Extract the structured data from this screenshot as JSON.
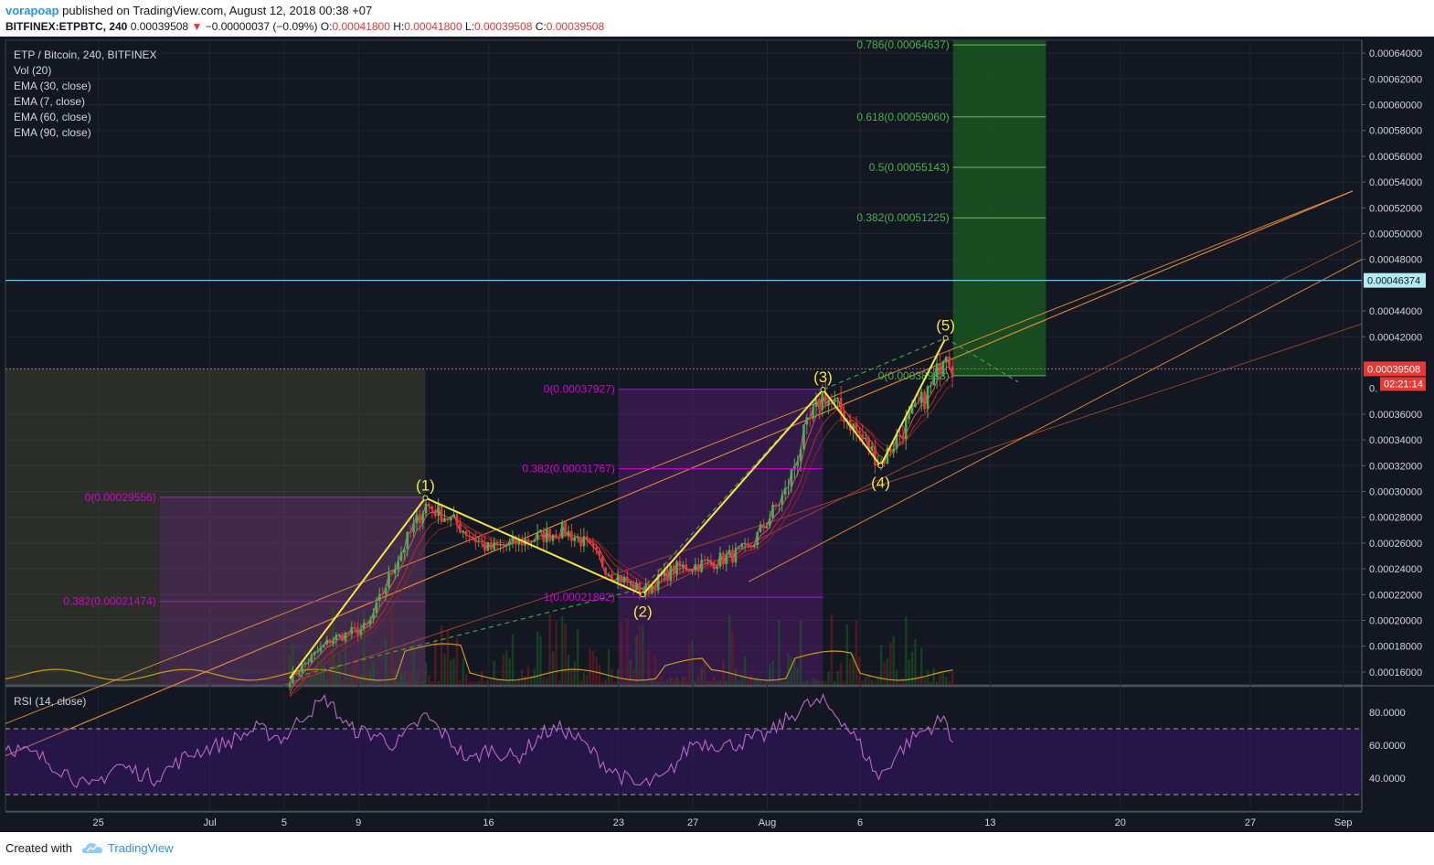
{
  "header": {
    "author": "vorapoap",
    "published_text": "published on TradingView.com, August 12, 2018 00:38 +07",
    "symbol": "BITFINEX:ETPBTC, 240",
    "last_price": "0.00039508",
    "change_arrow": "▼",
    "change": "−0.00000037 (−0.09%)",
    "o_label": "O:",
    "o_value": "0.00041800",
    "h_label": "H:",
    "h_value": "0.00041800",
    "l_label": "L:",
    "l_value": "0.00039508",
    "c_label": "C:",
    "c_value": "0.00039508"
  },
  "legend": {
    "title": "ETP / Bitcoin, 240, BITFINEX",
    "indicators": [
      "Vol (20)",
      "EMA (30, close)",
      "EMA (7, close)",
      "EMA (60, close)",
      "EMA (90, close)"
    ]
  },
  "price_axis": {
    "ticks": [
      "0.00064000",
      "0.00062000",
      "0.00060000",
      "0.00058000",
      "0.00056000",
      "0.00054000",
      "0.00052000",
      "0.00050000",
      "0.00048000",
      "0.00044000",
      "0.00042000",
      "0.00036000",
      "0.00034000",
      "0.00032000",
      "0.00030000",
      "0.00028000",
      "0.00026000",
      "0.00024000",
      "0.00022000",
      "0.00020000",
      "0.00018000",
      "0.00016000"
    ],
    "level_line_label": "0.00046374",
    "current_price_label": "0.00039508",
    "countdown_label": "02:21:14",
    "partial_tick_label": "0."
  },
  "time_axis": {
    "labels": [
      {
        "text": "25",
        "day": 25
      },
      {
        "text": "Jul",
        "day": 31
      },
      {
        "text": "5",
        "day": 35
      },
      {
        "text": "9",
        "day": 39
      },
      {
        "text": "16",
        "day": 46
      },
      {
        "text": "23",
        "day": 53
      },
      {
        "text": "27",
        "day": 57
      },
      {
        "text": "Aug",
        "day": 61
      },
      {
        "text": "6",
        "day": 66
      },
      {
        "text": "13",
        "day": 73
      },
      {
        "text": "20",
        "day": 80
      },
      {
        "text": "27",
        "day": 87
      },
      {
        "text": "Sep",
        "day": 92
      }
    ]
  },
  "rsi": {
    "title": "RSI (14, close)",
    "ticks": [
      "80.0000",
      "60.0000",
      "40.0000"
    ]
  },
  "footer": {
    "created_with": "Created with",
    "brand": "TradingView"
  },
  "chart_data": {
    "type": "line",
    "price_range": [
      0.00015,
      0.00065
    ],
    "rsi_range": [
      20,
      95
    ],
    "x_unit": "day (June 1 = 1)",
    "x_range": [
      20,
      93
    ],
    "elliott_wave": [
      {
        "label": "(1)",
        "day": 42.6,
        "price": 0.000295
      },
      {
        "label": "(2)",
        "day": 54.3,
        "price": 0.00022
      },
      {
        "label": "(3)",
        "day": 64.0,
        "price": 0.000379
      },
      {
        "label": "(4)",
        "day": 67.1,
        "price": 0.00032
      },
      {
        "label": "(5)",
        "day": 70.6,
        "price": 0.000419
      }
    ],
    "wave_path": [
      [
        35.3,
        0.000155
      ],
      [
        42.6,
        0.000295
      ],
      [
        54.3,
        0.00022
      ],
      [
        64.0,
        0.000379
      ],
      [
        67.1,
        0.00032
      ],
      [
        70.6,
        0.000419
      ]
    ],
    "fib_retracements": [
      {
        "text": "0(0.00029556)",
        "price": 0.00029556,
        "day_from": 28.3,
        "day_to": 42.6
      },
      {
        "text": "0.382(0.00021474)",
        "price": 0.00021474,
        "day_from": 28.3,
        "day_to": 42.6
      },
      {
        "text": "0(0.00037927)",
        "price": 0.00037927,
        "day_from": 53.0,
        "day_to": 64.0
      },
      {
        "text": "0.382(0.00031767)",
        "price": 0.00031767,
        "day_from": 53.0,
        "day_to": 64.0
      },
      {
        "text": "1(0.00021802)",
        "price": 0.00021802,
        "day_from": 53.0,
        "day_to": 64.0
      }
    ],
    "fib_extensions": [
      {
        "text": "0.786(0.00064637)",
        "price": 0.00064637
      },
      {
        "text": "0.618(0.00059060)",
        "price": 0.0005906
      },
      {
        "text": "0.5(0.00055143)",
        "price": 0.00055143
      },
      {
        "text": "0.382(0.00051225)",
        "price": 0.00051225
      },
      {
        "text": "0(0.00038983)",
        "price": 0.00038983
      }
    ],
    "horizontal_levels": [
      {
        "name": "resistance",
        "price": 0.00046374,
        "color": "#6fc3df"
      },
      {
        "name": "last",
        "price": 0.00039508,
        "color": "#ef5350"
      }
    ],
    "colors": {
      "background": "#131722",
      "wave": "#f4e542",
      "fib": "#d500d5",
      "fib_ext": "#2e7d32",
      "ext_text": "#4caf50",
      "trend": "#f7953a",
      "rsi": "#ba68c8",
      "vol_ma": "#c89a1a"
    }
  }
}
